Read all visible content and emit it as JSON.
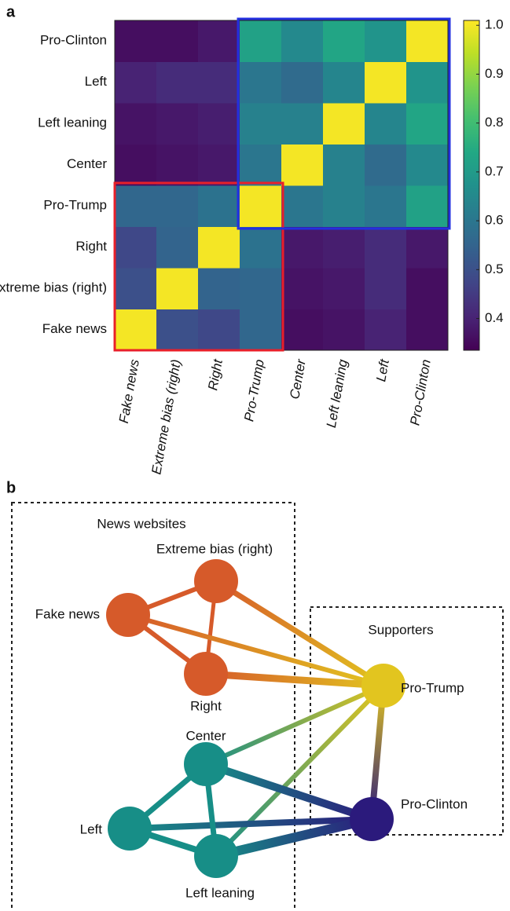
{
  "chart_data": [
    {
      "type": "heatmap",
      "panel": "a",
      "categories": [
        "Fake news",
        "Extreme bias (right)",
        "Right",
        "Pro-Trump",
        "Center",
        "Left leaning",
        "Left",
        "Pro-Clinton"
      ],
      "values": [
        [
          1.0,
          0.5,
          0.48,
          0.56,
          0.36,
          0.37,
          0.4,
          0.36
        ],
        [
          0.5,
          1.0,
          0.55,
          0.56,
          0.37,
          0.38,
          0.42,
          0.36
        ],
        [
          0.48,
          0.55,
          1.0,
          0.59,
          0.38,
          0.39,
          0.42,
          0.38
        ],
        [
          0.56,
          0.56,
          0.59,
          1.0,
          0.6,
          0.63,
          0.6,
          0.72
        ],
        [
          0.36,
          0.37,
          0.38,
          0.6,
          1.0,
          0.63,
          0.57,
          0.65
        ],
        [
          0.37,
          0.38,
          0.39,
          0.63,
          0.63,
          1.0,
          0.64,
          0.73
        ],
        [
          0.4,
          0.42,
          0.42,
          0.6,
          0.57,
          0.64,
          1.0,
          0.68
        ],
        [
          0.36,
          0.36,
          0.38,
          0.72,
          0.65,
          0.73,
          0.68,
          1.0
        ]
      ],
      "colormap": "viridis",
      "clim": [
        0.335,
        1.01
      ],
      "cticks": [
        0.4,
        0.5,
        0.6,
        0.7,
        0.8,
        0.9,
        {
          "value": 1.0,
          "label": "1.0"
        }
      ]
    },
    {
      "type": "network",
      "panel": "b",
      "groups": [
        "News websites",
        "Supporters"
      ],
      "nodes": [
        {
          "label": "Fake news",
          "color": "#d65a2a"
        },
        {
          "label": "Extreme bias (right)",
          "color": "#d65a2a"
        },
        {
          "label": "Right",
          "color": "#d65a2a"
        },
        {
          "label": "Pro-Trump",
          "color": "#e2c51f"
        },
        {
          "label": "Center",
          "color": "#178e87"
        },
        {
          "label": "Left",
          "color": "#178e87"
        },
        {
          "label": "Left leaning",
          "color": "#178e87"
        },
        {
          "label": "Pro-Clinton",
          "color": "#2b1a7c"
        }
      ]
    }
  ]
}
